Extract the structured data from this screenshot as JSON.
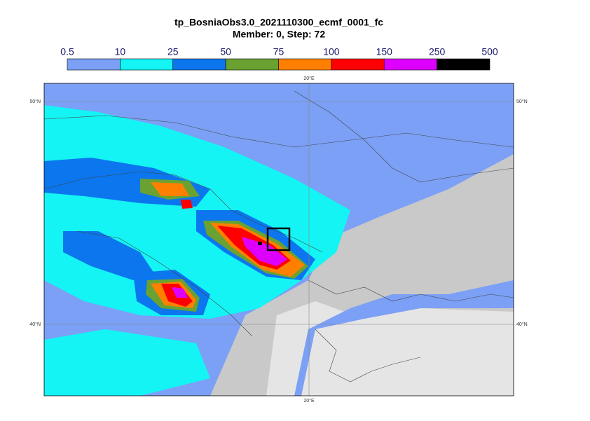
{
  "header": {
    "title": "tp_BosniaObs3.0_2021110300_ecmf_0001_fc",
    "subtitle": "Member: 0, Step: 72"
  },
  "colorbar": {
    "levels": [
      0.5,
      10,
      25,
      50,
      75,
      100,
      150,
      250,
      500
    ],
    "colors": [
      "#7ba0f5",
      "#14f4f4",
      "#0b76ee",
      "#6aa232",
      "#ff8000",
      "#ff0000",
      "#dd00ff",
      "#000000"
    ]
  },
  "map": {
    "lon_label": "20°E",
    "lat_labels": [
      "50°N",
      "40°N"
    ]
  }
}
